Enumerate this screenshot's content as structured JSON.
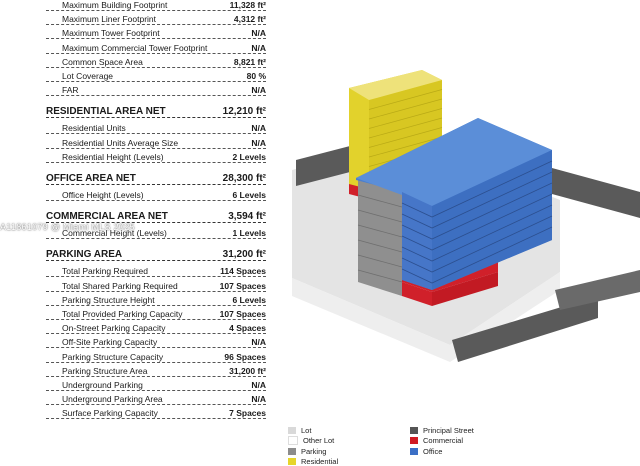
{
  "table": {
    "rows": [
      {
        "label": "Maximum Building Footprint",
        "value": "11,328 ft²",
        "head": false
      },
      {
        "label": "Maximum Liner Footprint",
        "value": "4,312 ft²",
        "head": false
      },
      {
        "label": "Maximum Tower Footprint",
        "value": "N/A",
        "head": false
      },
      {
        "label": "Maximum Commercial Tower Footprint",
        "value": "N/A",
        "head": false
      },
      {
        "label": "Common Space Area",
        "value": "8,821 ft²",
        "head": false
      },
      {
        "label": "Lot Coverage",
        "value": "80 %",
        "head": false
      },
      {
        "label": "FAR",
        "value": "N/A",
        "head": false
      },
      {
        "label": "RESIDENTIAL AREA NET",
        "value": "12,210 ft²",
        "head": true
      },
      {
        "label": "Residential Units",
        "value": "N/A",
        "head": false
      },
      {
        "label": "Residential Units Average Size",
        "value": "N/A",
        "head": false
      },
      {
        "label": "Residential Height (Levels)",
        "value": "2 Levels",
        "head": false
      },
      {
        "label": "OFFICE AREA NET",
        "value": "28,300 ft²",
        "head": true
      },
      {
        "label": "Office Height (Levels)",
        "value": "6 Levels",
        "head": false
      },
      {
        "label": "COMMERCIAL AREA NET",
        "value": "3,594 ft²",
        "head": true
      },
      {
        "label": "Commercial Height (Levels)",
        "value": "1 Levels",
        "head": false
      },
      {
        "label": "PARKING AREA",
        "value": "31,200 ft²",
        "head": true
      },
      {
        "label": "Total Parking Required",
        "value": "114 Spaces",
        "head": false
      },
      {
        "label": "Total Shared Parking Required",
        "value": "107 Spaces",
        "head": false
      },
      {
        "label": "Parking Structure Height",
        "value": "6 Levels",
        "head": false
      },
      {
        "label": "Total Provided Parking Capacity",
        "value": "107 Spaces",
        "head": false
      },
      {
        "label": "On-Street Parking Capacity",
        "value": "4 Spaces",
        "head": false
      },
      {
        "label": "Off-Site Parking Capacity",
        "value": "N/A",
        "head": false
      },
      {
        "label": "Parking Structure Capacity",
        "value": "96 Spaces",
        "head": false
      },
      {
        "label": "Parking Structure Area",
        "value": "31,200 ft²",
        "head": false
      },
      {
        "label": "Underground Parking",
        "value": "N/A",
        "head": false
      },
      {
        "label": "Underground Parking Area",
        "value": "N/A",
        "head": false
      },
      {
        "label": "Surface Parking Capacity",
        "value": "7 Spaces",
        "head": false
      }
    ]
  },
  "watermark": "A11861079 @ Miami MLS 2025",
  "legend": {
    "items": [
      {
        "label": "Lot",
        "color": "#d9d9d9"
      },
      {
        "label": "Other Lot",
        "color": "#ffffff"
      },
      {
        "label": "Parking",
        "color": "#8c8c8c"
      },
      {
        "label": "Residential",
        "color": "#e6d52a"
      },
      {
        "label": "Principal Street",
        "color": "#555555"
      },
      {
        "label": "Commercial",
        "color": "#d11a22"
      },
      {
        "label": "Office",
        "color": "#3b6fc6"
      }
    ]
  },
  "model": {
    "colors": {
      "office": "#4a7fd0",
      "office_top": "#5b8ed8",
      "office_side": "#3b69b8",
      "residential": "#e2d22c",
      "residential_top": "#eee27a",
      "parking": "#8f8f8f",
      "commercial": "#d0202a",
      "street": "#5a5a5a",
      "lot": "#d9d9d9"
    }
  }
}
